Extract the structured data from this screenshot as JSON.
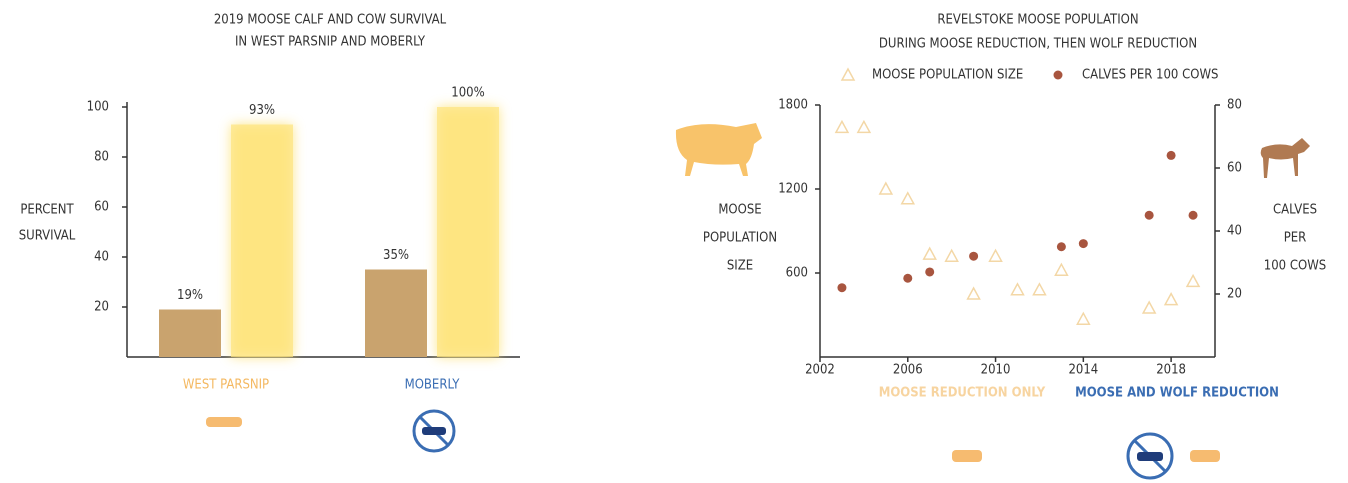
{
  "chart_data": [
    {
      "type": "bar",
      "title": [
        "2019 MOOSE CALF AND COW SURVIVAL",
        "IN WEST PARSNIP AND MOBERLY"
      ],
      "ylabel": [
        "PERCENT",
        "SURVIVAL"
      ],
      "categories": [
        "WEST PARSNIP",
        "MOBERLY"
      ],
      "category_colors": [
        "#f4b860",
        "#3a6db3"
      ],
      "series": [
        {
          "color": "#c9a36e",
          "values": [
            19,
            35
          ],
          "value_labels": [
            "19%",
            "35%"
          ]
        },
        {
          "color": "#fde47e",
          "values": [
            93,
            100
          ],
          "value_labels": [
            "93%",
            "100%"
          ]
        }
      ],
      "ylim": [
        0,
        100
      ],
      "yticks": [
        20,
        40,
        60,
        80,
        100
      ]
    },
    {
      "type": "scatter",
      "title": [
        "REVELSTOKE MOOSE POPULATION",
        "DURING MOOSE REDUCTION, THEN WOLF REDUCTION"
      ],
      "ylabel": [
        "MOOSE",
        "POPULATION",
        "SIZE"
      ],
      "y2label": [
        "CALVES",
        "PER",
        "100 COWS"
      ],
      "series": [
        {
          "name": "MOOSE POPULATION SIZE",
          "color": "#f3d7a6",
          "marker": "triangle",
          "x": [
            2003,
            2004,
            2005,
            2006,
            2007,
            2008,
            2009,
            2010,
            2011,
            2012,
            2013,
            2014,
            2017,
            2018,
            2019
          ],
          "values": [
            1640,
            1640,
            1200,
            1130,
            735,
            720,
            450,
            720,
            480,
            480,
            620,
            270,
            350,
            410,
            540
          ]
        },
        {
          "name": "CALVES PER 100 COWS",
          "color": "#a8553f",
          "marker": "circle",
          "axis": "y2",
          "x": [
            2003,
            2006,
            2007,
            2009,
            2013,
            2014,
            2017,
            2018,
            2019
          ],
          "values": [
            22,
            25,
            27,
            32,
            35,
            36,
            45,
            64,
            45
          ]
        }
      ],
      "xlim": [
        2002,
        2020
      ],
      "xticks": [
        2002,
        2006,
        2010,
        2014,
        2018
      ],
      "ylim": [
        0,
        1800
      ],
      "yticks": [
        600,
        1200,
        1800
      ],
      "y2lim": [
        0,
        80
      ],
      "y2ticks": [
        20,
        40,
        60,
        80
      ],
      "annotations": [
        "MOOSE REDUCTION ONLY",
        "MOOSE AND WOLF REDUCTION"
      ],
      "annotation_colors": [
        "#f7d4a0",
        "#3a6db3"
      ]
    }
  ]
}
